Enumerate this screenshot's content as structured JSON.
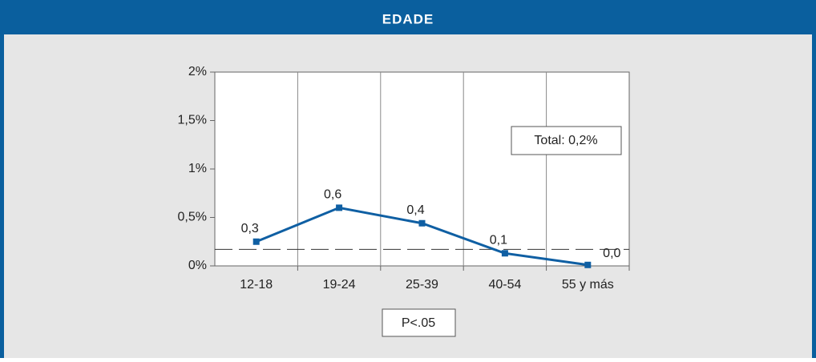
{
  "chart_data": {
    "type": "line",
    "title": "EDADE",
    "categories": [
      "12-18",
      "19-24",
      "25-39",
      "40-54",
      "55 y más"
    ],
    "values": [
      0.25,
      0.6,
      0.44,
      0.13,
      0.01
    ],
    "value_labels": [
      "0,3",
      "0,6",
      "0,4",
      "0,1",
      "0,0"
    ],
    "color": "#0f5fa3",
    "ylim": [
      0,
      2
    ],
    "yticks": [
      {
        "value": 0,
        "label": "0%"
      },
      {
        "value": 0.5,
        "label": "0,5%"
      },
      {
        "value": 1,
        "label": "1%"
      },
      {
        "value": 1.5,
        "label": "1,5%"
      },
      {
        "value": 2,
        "label": "2%"
      }
    ],
    "reference_line": {
      "value": 0.17,
      "label": "Total: 0,2%"
    },
    "annotation": "P<.05"
  }
}
